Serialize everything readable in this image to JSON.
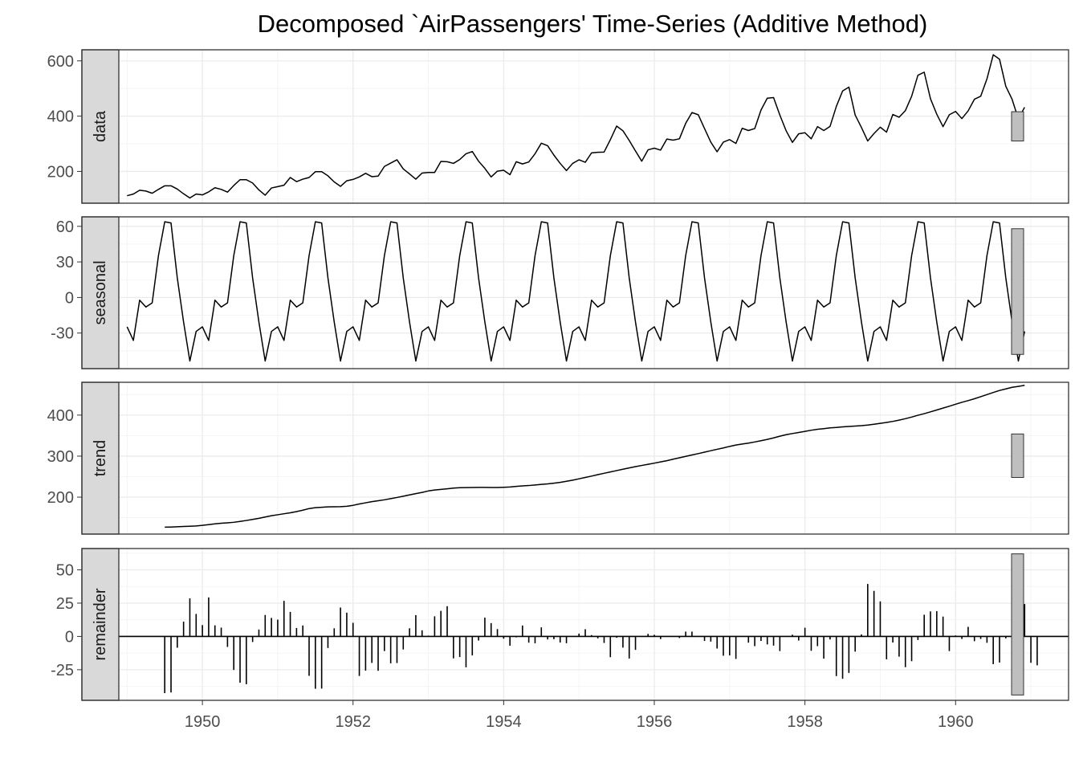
{
  "chart_data": {
    "type": "line",
    "title": "Decomposed `AirPassengers' Time-Series (Additive Method)",
    "xlabel": "",
    "ylabel": "",
    "x_ticks": [
      1950,
      1952,
      1954,
      1956,
      1958,
      1960
    ],
    "x_range": [
      1948.4,
      1961.5
    ],
    "grid": true,
    "start": 1949.0,
    "frequency": 12,
    "panels": [
      {
        "name": "data",
        "type": "line",
        "ylim": [
          85,
          640
        ],
        "y_ticks": [
          200,
          400,
          600
        ],
        "y_tick_labels": [
          "200",
          "400",
          "600"
        ],
        "scale_bar": [
          310,
          416
        ],
        "values": [
          112,
          118,
          132,
          129,
          121,
          135,
          148,
          148,
          136,
          119,
          104,
          118,
          115,
          126,
          141,
          135,
          125,
          149,
          170,
          170,
          158,
          133,
          114,
          140,
          145,
          150,
          178,
          163,
          172,
          178,
          199,
          199,
          184,
          162,
          146,
          166,
          171,
          180,
          193,
          181,
          183,
          218,
          230,
          242,
          209,
          191,
          172,
          194,
          196,
          196,
          236,
          235,
          229,
          243,
          264,
          272,
          237,
          211,
          180,
          201,
          204,
          188,
          235,
          227,
          234,
          264,
          302,
          293,
          259,
          229,
          203,
          229,
          242,
          233,
          267,
          269,
          270,
          315,
          364,
          347,
          312,
          274,
          237,
          278,
          284,
          277,
          317,
          313,
          318,
          374,
          413,
          405,
          355,
          306,
          271,
          306,
          315,
          301,
          356,
          348,
          355,
          422,
          465,
          467,
          404,
          347,
          305,
          336,
          340,
          318,
          362,
          348,
          363,
          435,
          491,
          505,
          404,
          359,
          310,
          337,
          360,
          342,
          406,
          396,
          420,
          472,
          548,
          559,
          463,
          407,
          362,
          405,
          417,
          391,
          419,
          461,
          472,
          535,
          622,
          606,
          508,
          461,
          390,
          432
        ]
      },
      {
        "name": "seasonal",
        "type": "line",
        "ylim": [
          -60,
          68
        ],
        "y_ticks": [
          -30,
          0,
          30,
          60
        ],
        "y_tick_labels": [
          "-30",
          "0",
          "30",
          "60"
        ],
        "scale_bar": [
          -48,
          58
        ],
        "pattern": [
          -24.75,
          -36.19,
          -2.24,
          -8.04,
          -4.51,
          35.4,
          63.83,
          62.82,
          16.52,
          -20.64,
          -53.59,
          -28.62
        ]
      },
      {
        "name": "trend",
        "type": "line",
        "ylim": [
          110,
          480
        ],
        "y_ticks": [
          200,
          300,
          400
        ],
        "y_tick_labels": [
          "200",
          "300",
          "400"
        ],
        "scale_bar": [
          248,
          354
        ],
        "values": [
          null,
          null,
          null,
          null,
          null,
          null,
          126.79,
          127.25,
          127.96,
          128.58,
          129.0,
          129.75,
          131.25,
          133.08,
          134.92,
          136.42,
          137.42,
          138.75,
          140.92,
          143.17,
          145.71,
          148.42,
          151.54,
          154.71,
          157.13,
          159.54,
          161.83,
          164.75,
          168.29,
          172.21,
          174.42,
          175.42,
          176.21,
          176.5,
          176.88,
          177.79,
          180.08,
          183.38,
          186.21,
          189.04,
          191.29,
          193.58,
          196.33,
          199.21,
          202.29,
          205.5,
          208.58,
          211.58,
          215.13,
          217.33,
          219.0,
          220.38,
          222.0,
          223.13,
          223.33,
          223.5,
          223.71,
          223.75,
          223.63,
          223.54,
          224.0,
          224.75,
          226.33,
          227.58,
          228.33,
          229.71,
          231.21,
          232.46,
          234.08,
          236.04,
          238.63,
          241.38,
          244.75,
          248.04,
          251.33,
          254.79,
          258.17,
          261.5,
          264.75,
          268.04,
          271.25,
          274.46,
          277.25,
          280.08,
          282.88,
          285.88,
          288.88,
          292.5,
          296.04,
          299.46,
          302.75,
          306.13,
          309.75,
          313.21,
          316.63,
          320.04,
          323.71,
          327.0,
          329.42,
          331.75,
          334.5,
          337.58,
          340.75,
          344.38,
          348.63,
          352.25,
          355.08,
          357.58,
          360.38,
          363.17,
          365.38,
          367.0,
          368.88,
          370.0,
          371.25,
          372.33,
          373.38,
          374.21,
          375.79,
          377.79,
          380.0,
          382.04,
          384.71,
          387.79,
          391.25,
          395.17,
          399.63,
          403.58,
          407.96,
          412.46,
          417.13,
          421.67,
          426.54,
          431.21,
          435.38,
          439.83,
          444.96,
          450.04,
          455.13,
          460.08,
          463.83,
          467.83,
          470.04,
          472.58,
          null,
          null,
          null,
          null,
          null,
          null
        ]
      },
      {
        "name": "remainder",
        "type": "bar",
        "ylim": [
          -48,
          66
        ],
        "y_ticks": [
          -25,
          0,
          25,
          50
        ],
        "y_tick_labels": [
          "-25",
          "0",
          "25",
          "50"
        ],
        "scale_bar": [
          -44,
          62
        ],
        "values": [
          null,
          null,
          null,
          null,
          null,
          null,
          -42.6,
          -42.1,
          -8.5,
          11.1,
          28.6,
          16.9,
          8.5,
          29.3,
          8.3,
          6.6,
          -7.9,
          -25.2,
          -34.8,
          -35.9,
          -4.2,
          5.2,
          16.1,
          13.9,
          12.6,
          26.7,
          18.4,
          6.3,
          8.2,
          -29.6,
          -39.3,
          -39.2,
          -8.7,
          6.1,
          21.7,
          17.8,
          10.2,
          -29.7,
          -25.7,
          -19.9,
          -25.8,
          -11.0,
          -20.2,
          -20.0,
          -9.8,
          6.1,
          16.0,
          4.6,
          0.6,
          15.1,
          19.2,
          22.7,
          -16.5,
          -15.5,
          -23.2,
          -14.3,
          -3.1,
          14.1,
          10.0,
          5.5,
          -1.7,
          -7.0,
          -0.7,
          8.2,
          -4.7,
          -5.2,
          6.8,
          -2.3,
          -2.1,
          -4.6,
          -5.1,
          0.2,
          2.1,
          5.4,
          1.0,
          -1.5,
          -4.9,
          -15.6,
          -1.0,
          -8.4,
          -16.6,
          -10.1,
          -0.3,
          1.9,
          1.2,
          -2.0,
          0.0,
          -0.2,
          -1.2,
          3.6,
          3.6,
          -0.4,
          -3.4,
          -3.9,
          -9.1,
          -14.5,
          -14.3,
          -16.9,
          -0.1,
          -4.7,
          -7.3,
          -3.4,
          -6.0,
          -6.9,
          -11.0,
          0.1,
          1.3,
          -3.1,
          6.5,
          -10.8,
          -7.3,
          -16.7,
          -2.3,
          -29.8,
          -31.8,
          -27.4,
          -11.4,
          1.5,
          39.4,
          34.2,
          26.3,
          -17.2,
          -4.6,
          -15.2,
          -23.1,
          -18.6,
          -2.7,
          16.3,
          18.8,
          19.0,
          14.9,
          -11.0,
          0.7,
          -1.9,
          7.2,
          -3.6,
          -1.9,
          -4.8,
          -20.8,
          -19.6,
          -1.5,
          -15.5,
          3.6,
          24.3,
          -19.8,
          -21.7,
          null,
          null,
          null,
          null,
          null,
          null
        ]
      }
    ]
  }
}
